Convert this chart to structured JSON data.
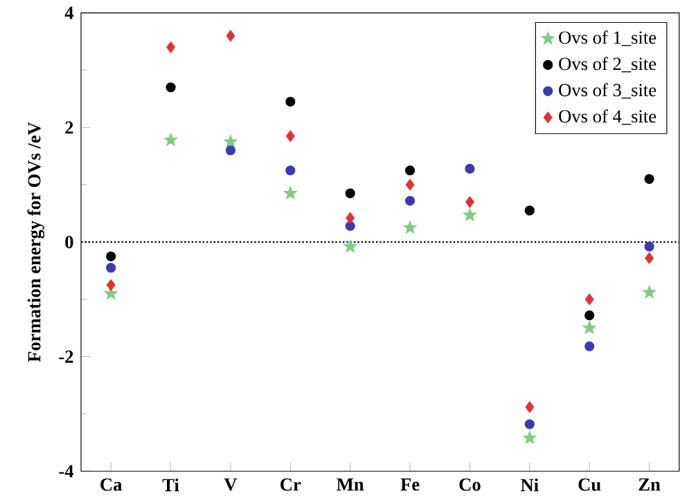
{
  "chart_data": {
    "type": "scatter",
    "ylabel": "Formation energy for OVs /eV",
    "categories": [
      "Ca",
      "Ti",
      "V",
      "Cr",
      "Mn",
      "Fe",
      "Co",
      "Ni",
      "Cu",
      "Zn"
    ],
    "series": [
      {
        "name": "Ovs of 1_site",
        "color": "#7ccf7c",
        "marker": "star",
        "values": [
          -0.9,
          1.78,
          1.75,
          0.85,
          -0.08,
          0.25,
          0.47,
          -3.42,
          -1.5,
          -0.88
        ]
      },
      {
        "name": "Ovs of 2_site",
        "color": "#000000",
        "marker": "circle",
        "values": [
          -0.25,
          2.7,
          null,
          2.45,
          0.85,
          1.25,
          null,
          0.55,
          -1.28,
          1.1
        ]
      },
      {
        "name": "Ovs of 3_site",
        "color": "#3a3ab8",
        "marker": "circle",
        "values": [
          -0.45,
          null,
          1.6,
          1.25,
          0.28,
          0.72,
          1.28,
          -3.18,
          -1.82,
          -0.08
        ]
      },
      {
        "name": "Ovs of 4_site",
        "color": "#e83030",
        "marker": "diamond",
        "values": [
          -0.75,
          3.4,
          3.6,
          1.85,
          0.42,
          1.0,
          0.7,
          -2.88,
          -1.0,
          -0.28
        ]
      }
    ],
    "ylim": [
      -4,
      4
    ],
    "yticks": [
      -4,
      -2,
      0,
      2,
      4
    ],
    "ref_lines": [
      {
        "axis": "y",
        "value": 0,
        "line_style": "dotted",
        "color": "#000000"
      }
    ],
    "legend": "top right",
    "grid": false
  }
}
